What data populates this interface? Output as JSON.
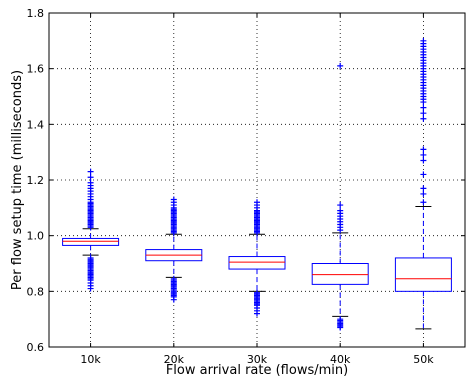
{
  "chart_data": {
    "type": "box",
    "title": "",
    "xlabel": "Flow arrival rate (flows/min)",
    "ylabel": "Per flow setup time (milliseconds)",
    "ylim": [
      0.6,
      1.8
    ],
    "yticks": [
      0.6,
      0.8,
      1.0,
      1.2,
      1.4,
      1.6,
      1.8
    ],
    "ytick_labels": [
      "0.6",
      "0.8",
      "1.0",
      "1.2",
      "1.4",
      "1.6",
      "1.8"
    ],
    "grid": true,
    "legend": "none",
    "colors": {
      "box": "#0000ff",
      "median": "#ff0000",
      "whisker": "#0000ff",
      "cap": "#000000",
      "outlier": "#0000ff"
    },
    "categories": [
      "10k",
      "20k",
      "30k",
      "40k",
      "50k"
    ],
    "boxes": [
      {
        "label": "10k",
        "q1": 0.965,
        "median": 0.98,
        "q3": 0.99,
        "whisker_low": 0.93,
        "whisker_high": 1.025,
        "outliers_high": [
          1.03,
          1.035,
          1.04,
          1.045,
          1.05,
          1.055,
          1.06,
          1.065,
          1.07,
          1.075,
          1.08,
          1.085,
          1.09,
          1.095,
          1.1,
          1.105,
          1.11,
          1.115,
          1.12,
          1.13,
          1.14,
          1.15,
          1.16,
          1.17,
          1.18,
          1.19,
          1.21,
          1.23
        ],
        "outliers_low": [
          0.92,
          0.915,
          0.91,
          0.905,
          0.9,
          0.895,
          0.89,
          0.885,
          0.88,
          0.875,
          0.87,
          0.865,
          0.86,
          0.855,
          0.85,
          0.845,
          0.84,
          0.83,
          0.82,
          0.81
        ]
      },
      {
        "label": "20k",
        "q1": 0.91,
        "median": 0.93,
        "q3": 0.95,
        "whisker_low": 0.85,
        "whisker_high": 1.005,
        "outliers_high": [
          1.01,
          1.015,
          1.02,
          1.025,
          1.03,
          1.035,
          1.04,
          1.045,
          1.05,
          1.055,
          1.06,
          1.065,
          1.07,
          1.075,
          1.08,
          1.085,
          1.09,
          1.095,
          1.1,
          1.11,
          1.12,
          1.13
        ],
        "outliers_low": [
          0.845,
          0.84,
          0.835,
          0.83,
          0.825,
          0.82,
          0.815,
          0.81,
          0.805,
          0.8,
          0.795,
          0.79,
          0.785,
          0.78,
          0.77
        ]
      },
      {
        "label": "30k",
        "q1": 0.88,
        "median": 0.905,
        "q3": 0.925,
        "whisker_low": 0.8,
        "whisker_high": 1.005,
        "outliers_high": [
          1.01,
          1.015,
          1.02,
          1.025,
          1.03,
          1.035,
          1.04,
          1.045,
          1.05,
          1.055,
          1.06,
          1.065,
          1.07,
          1.075,
          1.08,
          1.085,
          1.09,
          1.1,
          1.11,
          1.12
        ],
        "outliers_low": [
          0.795,
          0.79,
          0.785,
          0.78,
          0.775,
          0.77,
          0.765,
          0.76,
          0.755,
          0.75,
          0.74,
          0.73,
          0.72
        ]
      },
      {
        "label": "40k",
        "q1": 0.825,
        "median": 0.86,
        "q3": 0.9,
        "whisker_low": 0.71,
        "whisker_high": 1.01,
        "outliers_high": [
          1.02,
          1.03,
          1.04,
          1.05,
          1.06,
          1.07,
          1.08,
          1.09,
          1.11,
          1.61
        ],
        "outliers_low": [
          0.7,
          0.695,
          0.69,
          0.685,
          0.68,
          0.675,
          0.67
        ]
      },
      {
        "label": "50k",
        "q1": 0.8,
        "median": 0.845,
        "q3": 0.92,
        "whisker_low": 0.665,
        "whisker_high": 1.105,
        "outliers_high": [
          1.12,
          1.15,
          1.17,
          1.22,
          1.27,
          1.29,
          1.31,
          1.42,
          1.44,
          1.46,
          1.48,
          1.49,
          1.5,
          1.51,
          1.52,
          1.53,
          1.54,
          1.55,
          1.56,
          1.57,
          1.58,
          1.59,
          1.6,
          1.61,
          1.62,
          1.63,
          1.64,
          1.65,
          1.66,
          1.67,
          1.68,
          1.69,
          1.7
        ],
        "outliers_low": []
      }
    ]
  }
}
